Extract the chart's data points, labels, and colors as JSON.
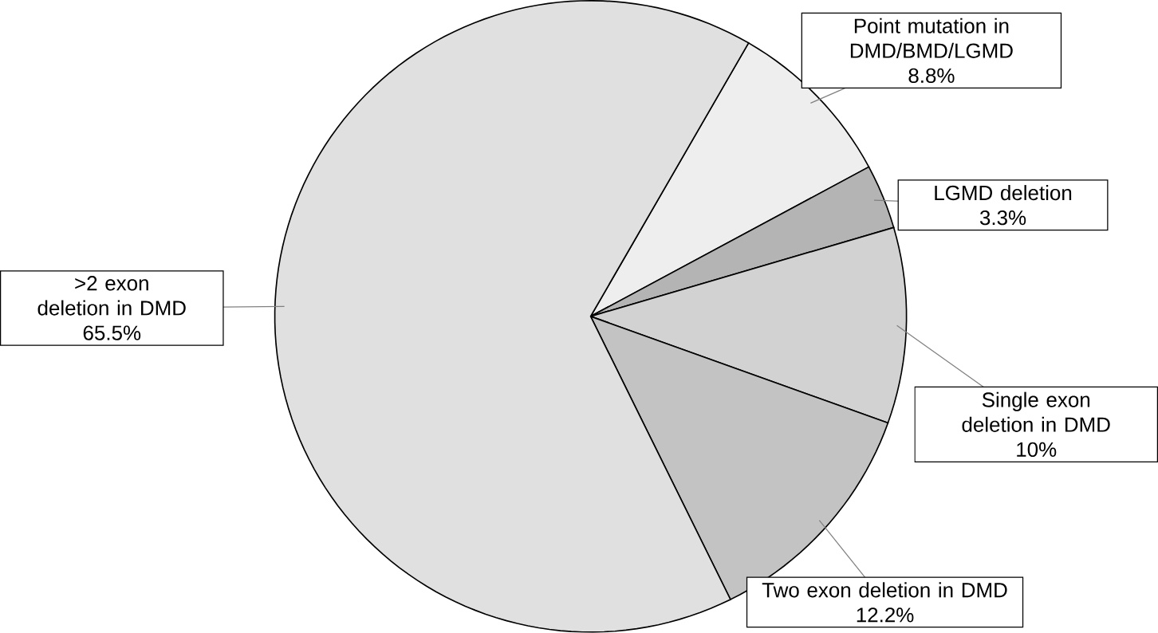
{
  "chart_data": {
    "type": "pie",
    "categories": [
      "Point mutation in DMD/BMD/LGMD",
      "LGMD deletion",
      "Single exon deletion in DMD",
      "Two exon deletion in DMD",
      ">2 exon deletion in DMD"
    ],
    "values": [
      8.8,
      3.3,
      10,
      12.2,
      65.5
    ],
    "value_labels": [
      "8.8%",
      "3.3%",
      "10%",
      "12.2%",
      "65.5%"
    ],
    "colors": [
      "#eeeeee",
      "#b4b4b4",
      "#d2d2d2",
      "#c3c3c3",
      "#e0e0e0"
    ]
  }
}
